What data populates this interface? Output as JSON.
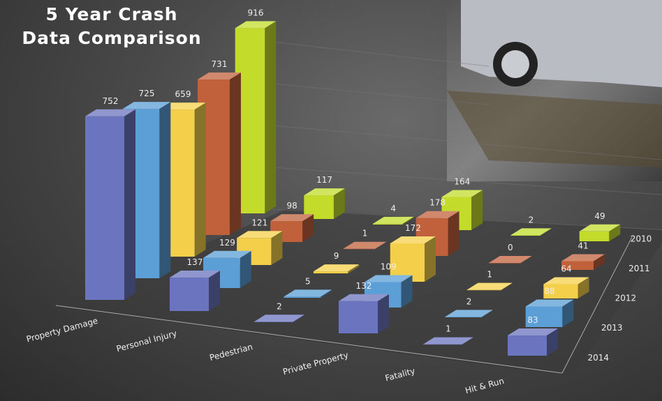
{
  "chart_data": {
    "type": "bar3d",
    "title": "5 Year Crash Data Comparison",
    "categories": [
      "Property Damage",
      "Personal Injury",
      "Pedestrian",
      "Private Property",
      "Fatality",
      "Hit & Run"
    ],
    "series": [
      {
        "name": "2014",
        "color": "#6b74bf",
        "values": [
          752,
          137,
          2,
          132,
          1,
          83
        ]
      },
      {
        "name": "2013",
        "color": "#5b9fd6",
        "values": [
          725,
          129,
          5,
          109,
          2,
          88
        ]
      },
      {
        "name": "2012",
        "color": "#f4d04a",
        "values": [
          659,
          121,
          9,
          172,
          1,
          64
        ]
      },
      {
        "name": "2011",
        "color": "#c0613c",
        "values": [
          731,
          98,
          1,
          178,
          0,
          41
        ]
      },
      {
        "name": "2010",
        "color": "#c3dc2c",
        "values": [
          916,
          117,
          4,
          164,
          2,
          49
        ]
      }
    ],
    "ylim": [
      0,
      1000
    ]
  }
}
